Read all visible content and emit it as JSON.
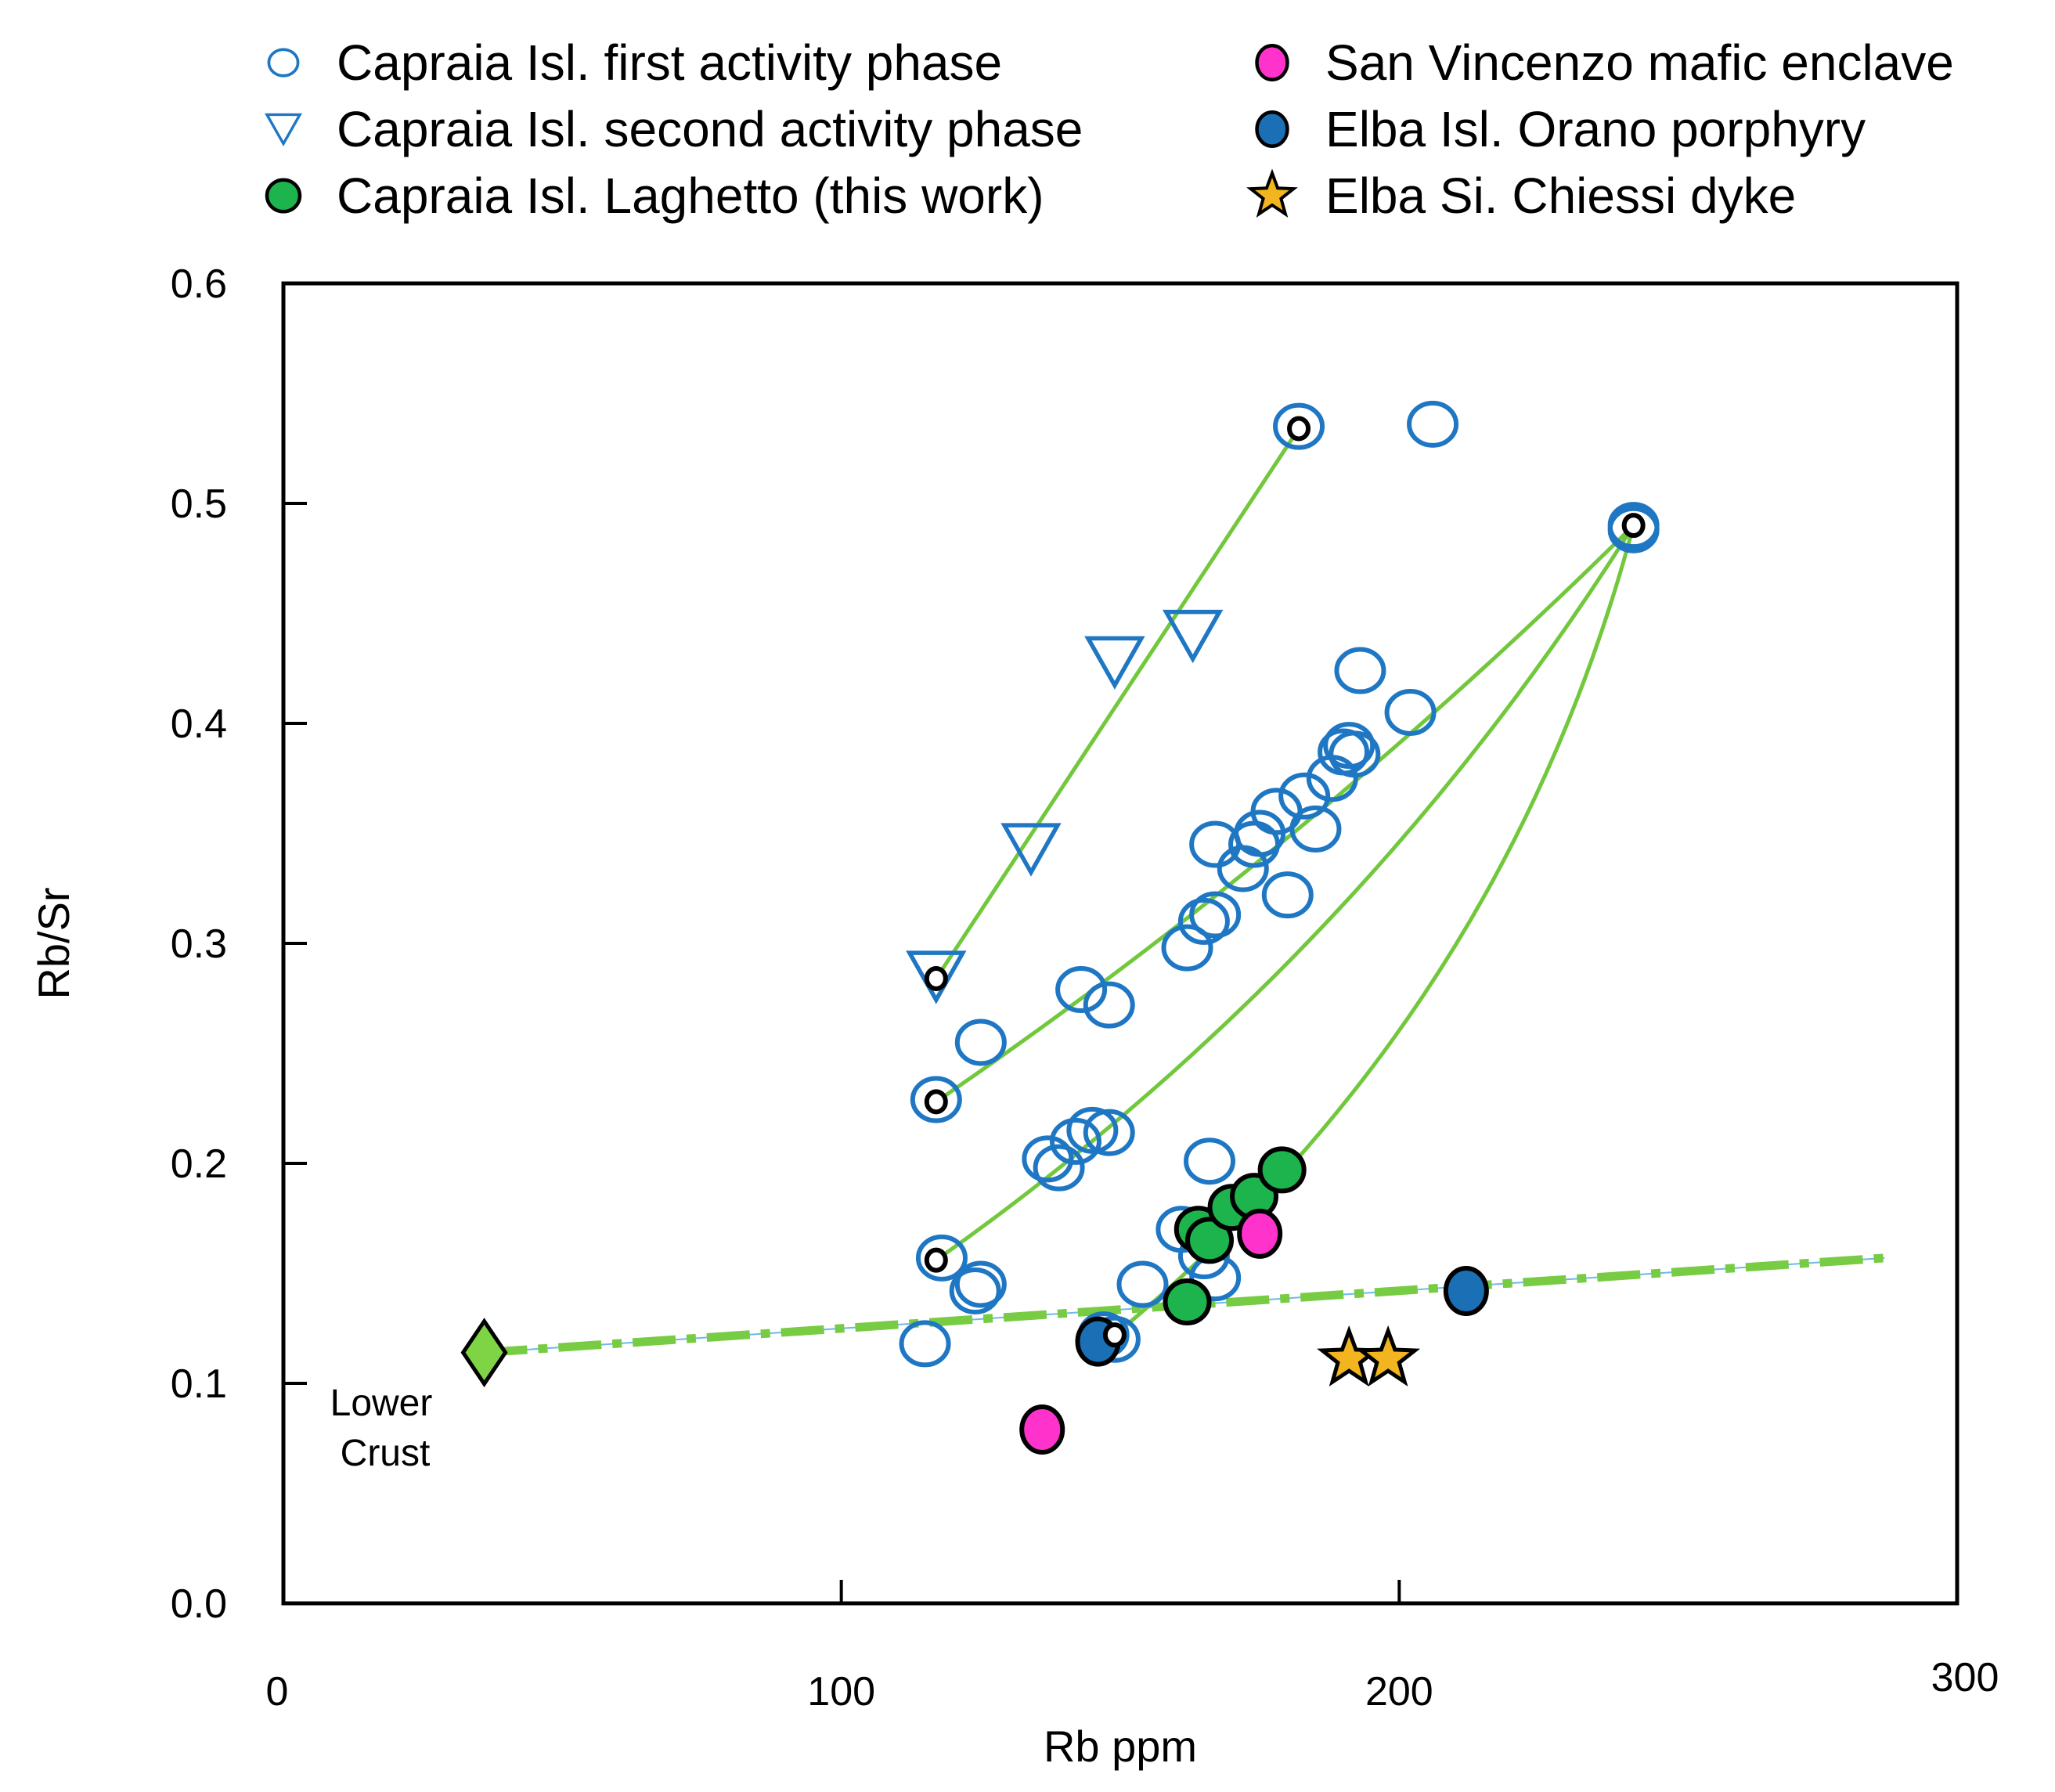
{
  "chart_data": {
    "type": "scatter",
    "title": "",
    "xlabel": "Rb ppm",
    "ylabel": "Rb/Sr",
    "xlim": [
      0,
      300
    ],
    "ylim": [
      0,
      0.6
    ],
    "x_ticks": [
      "0",
      "100",
      "200",
      "300"
    ],
    "y_ticks": [
      "0.0",
      "0.1",
      "0.2",
      "0.3",
      "0.4",
      "0.5",
      "0.6"
    ],
    "grid": false,
    "legend_position": "top",
    "colors": {
      "blue": "#1f77c4",
      "green": "#1db34d",
      "magenta": "#ff33cc",
      "elba_blue": "#1a6fb5",
      "star": "#f2b41f",
      "lower_crust": "#7ed444",
      "trend": "#77cc44",
      "mixing": "#72c83c"
    },
    "legend": [
      {
        "label": "Capraia Isl. first activity phase",
        "marker": "open-circle-icon"
      },
      {
        "label": "Capraia Isl. second activity phase",
        "marker": "open-triangle-icon"
      },
      {
        "label": "Capraia Isl. Laghetto (this work)",
        "marker": "green-circle-icon"
      },
      {
        "label": "San Vincenzo mafic  enclave",
        "marker": "magenta-circle-icon"
      },
      {
        "label": "Elba Isl. Orano porphyry",
        "marker": "blue-circle-icon"
      },
      {
        "label": "Elba Si. Chiessi dyke",
        "marker": "star-icon"
      }
    ],
    "series": [
      {
        "name": "Capraia Isl. first activity phase",
        "points": [
          [
            115,
            0.118
          ],
          [
            124,
            0.142
          ],
          [
            125,
            0.145
          ],
          [
            118,
            0.157
          ],
          [
            117,
            0.229
          ],
          [
            125,
            0.255
          ],
          [
            137,
            0.202
          ],
          [
            139,
            0.198
          ],
          [
            142,
            0.21
          ],
          [
            145,
            0.215
          ],
          [
            148,
            0.214
          ],
          [
            143,
            0.279
          ],
          [
            148,
            0.272
          ],
          [
            147,
            0.122
          ],
          [
            149,
            0.12
          ],
          [
            154,
            0.145
          ],
          [
            161,
            0.17
          ],
          [
            162,
            0.298
          ],
          [
            165,
            0.31
          ],
          [
            167,
            0.313
          ],
          [
            167,
            0.345
          ],
          [
            165,
            0.158
          ],
          [
            167,
            0.148
          ],
          [
            166,
            0.201
          ],
          [
            172,
            0.334
          ],
          [
            174,
            0.345
          ],
          [
            175,
            0.35
          ],
          [
            178,
            0.36
          ],
          [
            180,
            0.322
          ],
          [
            183,
            0.367
          ],
          [
            185,
            0.352
          ],
          [
            188,
            0.375
          ],
          [
            190,
            0.387
          ],
          [
            191,
            0.39
          ],
          [
            192,
            0.386
          ],
          [
            193,
            0.424
          ],
          [
            202,
            0.405
          ],
          [
            182,
            0.535
          ],
          [
            206,
            0.536
          ],
          [
            242,
            0.488
          ],
          [
            242,
            0.49
          ]
        ]
      },
      {
        "name": "Capraia Isl. second activity phase",
        "points": [
          [
            117,
            0.285
          ],
          [
            134,
            0.343
          ],
          [
            149,
            0.428
          ],
          [
            163,
            0.44
          ]
        ]
      },
      {
        "name": "Capraia Isl. Laghetto (this work)",
        "points": [
          [
            162,
            0.137
          ],
          [
            164,
            0.17
          ],
          [
            166,
            0.165
          ],
          [
            170,
            0.18
          ],
          [
            174,
            0.185
          ],
          [
            179,
            0.197
          ]
        ]
      },
      {
        "name": "San Vincenzo mafic  enclave",
        "points": [
          [
            136,
            0.079
          ],
          [
            175,
            0.168
          ]
        ]
      },
      {
        "name": "Elba Isl. Orano porphyry",
        "points": [
          [
            146,
            0.119
          ],
          [
            212,
            0.142
          ]
        ]
      },
      {
        "name": "Elba Si. Chiessi dyke",
        "points": [
          [
            191,
            0.111
          ],
          [
            198,
            0.111
          ]
        ]
      }
    ],
    "end_members": {
      "points": [
        [
          117,
          0.284
        ],
        [
          182,
          0.534
        ],
        [
          117,
          0.228
        ],
        [
          117,
          0.156
        ],
        [
          149,
          0.122
        ],
        [
          242,
          0.49
        ]
      ]
    },
    "lower_crust": {
      "point": [
        36,
        0.114
      ],
      "label_line1": "Lower",
      "label_line2": "Crust"
    },
    "trend_line": {
      "from": [
        36,
        0.114
      ],
      "to": [
        287,
        0.157
      ]
    },
    "mixing_curves": [
      {
        "name": "mixing-line-second-phase",
        "from": [
          117,
          0.284
        ],
        "to": [
          182,
          0.534
        ],
        "bend": 0
      },
      {
        "name": "mixing-curve-a",
        "from": [
          117,
          0.228
        ],
        "to": [
          242,
          0.49
        ],
        "bend": -0.045
      },
      {
        "name": "mixing-curve-b",
        "from": [
          117,
          0.156
        ],
        "to": [
          242,
          0.49
        ],
        "bend": -0.1
      },
      {
        "name": "mixing-curve-c",
        "from": [
          149,
          0.122
        ],
        "to": [
          242,
          0.49
        ],
        "bend": -0.16
      }
    ]
  }
}
